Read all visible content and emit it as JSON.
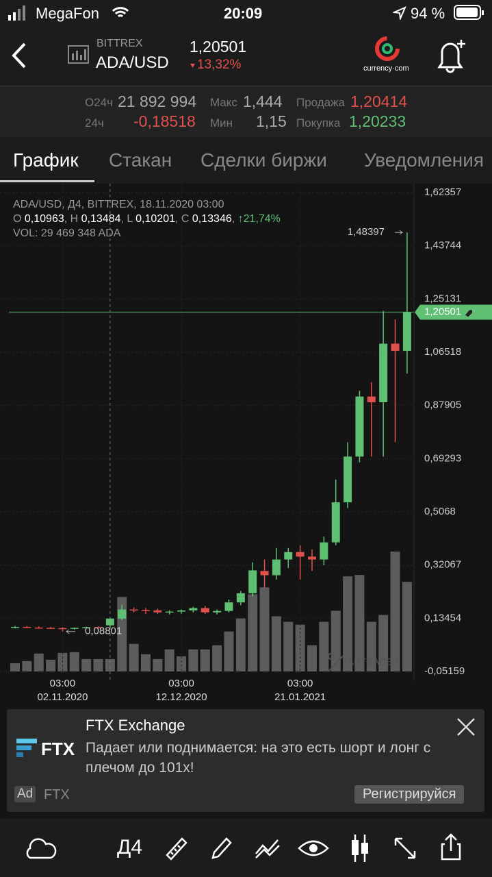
{
  "status_bar": {
    "carrier": "MegaFon",
    "time": "20:09",
    "battery": "94 %"
  },
  "header": {
    "exchange": "BITTREX",
    "pair": "ADA/USD",
    "price": "1,20501",
    "change": "13,32%",
    "brand": "currency·com"
  },
  "stats": {
    "vol_label": "O24ч",
    "vol": "21 892 994",
    "max_label": "Макс",
    "max": "1,444",
    "sell_label": "Продажа",
    "sell": "1,20414",
    "chg_label": "24ч",
    "chg": "-0,18518",
    "min_label": "Мин",
    "min": "1,15",
    "buy_label": "Покупка",
    "buy": "1,20233"
  },
  "tabs": [
    "График",
    "Стакан",
    "Сделки биржи",
    "Уведомления"
  ],
  "chart_data": {
    "type": "candlestick",
    "info": {
      "title": "ADA/USD, Д4, BITTREX, 18.11.2020 03:00",
      "o_label": "O",
      "o": "0,10963",
      "h_label": "H",
      "h": "0,13484",
      "l_label": "L",
      "l": "0,10201",
      "c_label": "C",
      "c": "0,13346",
      "change": "↑21,74%",
      "vol": "VOL: 29 469 348 ADA"
    },
    "categories": [
      null,
      null,
      null,
      null,
      "02.11.2020",
      null,
      null,
      null,
      null,
      null,
      null,
      null,
      null,
      null,
      "12.12.2020",
      null,
      null,
      null,
      null,
      null,
      null,
      null,
      null,
      null,
      "21.01.2021",
      null,
      null,
      null,
      null,
      null,
      null,
      null,
      null,
      null
    ],
    "x_time": "03:00",
    "open": [
      0.103,
      0.104,
      0.102,
      0.101,
      0.1,
      0.098,
      0.101,
      0.103,
      0.10963,
      0.133,
      0.165,
      0.163,
      0.162,
      0.155,
      0.158,
      0.162,
      0.17,
      0.155,
      0.16,
      0.19,
      0.222,
      0.3,
      0.285,
      0.34,
      0.366,
      0.35,
      0.34,
      0.4,
      0.54,
      0.7,
      0.91,
      0.89,
      1.095,
      1.07
    ],
    "high": [
      0.108,
      0.107,
      0.106,
      0.104,
      0.103,
      0.102,
      0.105,
      0.106,
      0.13484,
      0.182,
      0.172,
      0.17,
      0.168,
      0.162,
      0.165,
      0.175,
      0.178,
      0.165,
      0.2,
      0.23,
      0.33,
      0.34,
      0.38,
      0.38,
      0.39,
      0.375,
      0.42,
      0.62,
      0.75,
      0.93,
      0.96,
      1.21,
      1.18,
      1.48397
    ],
    "low": [
      0.099,
      0.1,
      0.098,
      0.097,
      0.08801,
      0.094,
      0.098,
      0.1,
      0.10201,
      0.128,
      0.155,
      0.15,
      0.15,
      0.148,
      0.15,
      0.155,
      0.15,
      0.148,
      0.155,
      0.18,
      0.21,
      0.24,
      0.27,
      0.31,
      0.27,
      0.3,
      0.32,
      0.39,
      0.52,
      0.68,
      0.7,
      0.7,
      0.75,
      0.99
    ],
    "close": [
      0.104,
      0.102,
      0.101,
      0.1,
      0.098,
      0.101,
      0.103,
      0.102,
      0.13346,
      0.165,
      0.163,
      0.16,
      0.155,
      0.158,
      0.162,
      0.17,
      0.155,
      0.16,
      0.19,
      0.222,
      0.302,
      0.285,
      0.34,
      0.366,
      0.35,
      0.34,
      0.4,
      0.54,
      0.7,
      0.91,
      0.89,
      1.095,
      1.07,
      1.20501
    ],
    "volume": [
      19600000,
      24600000,
      42600000,
      27800000,
      44200000,
      45800000,
      29500000,
      29500000,
      29469348,
      176800000,
      65500000,
      40900000,
      29500000,
      52400000,
      36000000,
      52400000,
      52400000,
      62200000,
      94900000,
      126000000,
      183300000,
      199700000,
      131000000,
      117900000,
      111300000,
      62200000,
      117900000,
      144100000,
      225900000,
      229200000,
      117900000,
      134200000,
      284800000,
      212800000
    ],
    "up_color": "#5fbf73",
    "down_color": "#e0504c",
    "volume_color": "#5c5c5c",
    "ylim": [
      -0.05159,
      1.62357
    ],
    "yticks": [
      {
        "value": 1.62357,
        "label": "1,62357"
      },
      {
        "value": 1.43744,
        "label": "1,43744"
      },
      {
        "value": 1.25131,
        "label": "1,25131"
      },
      {
        "value": 1.06518,
        "label": "1,06518"
      },
      {
        "value": 0.87905,
        "label": "0,87905"
      },
      {
        "value": 0.69293,
        "label": "0,69293"
      },
      {
        "value": 0.5068,
        "label": "0,5068"
      },
      {
        "value": 0.32067,
        "label": "0,32067"
      },
      {
        "value": 0.13454,
        "label": "0,13454"
      },
      {
        "value": -0.05159,
        "label": "-0,05159"
      }
    ],
    "max_marker": {
      "value": 1.48397,
      "label": "1,48397"
    },
    "min_marker": {
      "value": 0.08801,
      "label": "0,08801"
    },
    "last_price": {
      "value": 1.20501,
      "label": "1,20501"
    },
    "watermark": "TABTRADER"
  },
  "ad": {
    "title": "FTX Exchange",
    "text": "Падает или поднимается: на это есть шорт и лонг с плечом до 101x!",
    "badge": "Ad",
    "advertiser": "FTX",
    "logo": "FTX",
    "button": "Регистрируйся"
  },
  "toolbar": {
    "interval": "Д4"
  }
}
